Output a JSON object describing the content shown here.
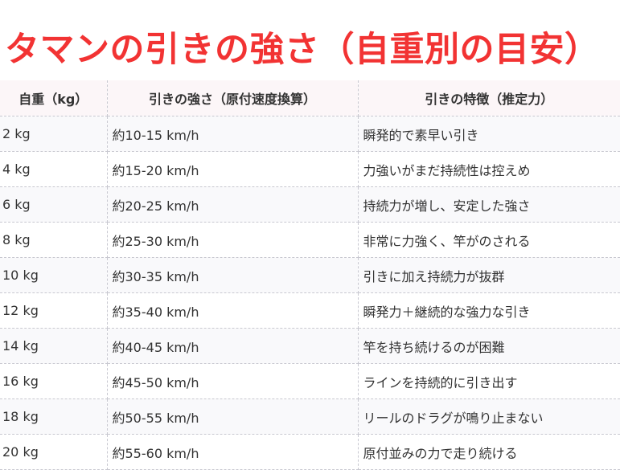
{
  "title": "タマンの引きの強さ（自重別の目安）",
  "table": {
    "headers": [
      "自重（kg）",
      "引きの強さ（原付速度換算）",
      "引きの特徴（推定力）"
    ],
    "rows": [
      [
        "2 kg",
        "約10-15 km/h",
        "瞬発的で素早い引き"
      ],
      [
        "4 kg",
        "約15-20 km/h",
        "力強いがまだ持続性は控えめ"
      ],
      [
        "6 kg",
        "約20-25 km/h",
        "持続力が増し、安定した強さ"
      ],
      [
        "8 kg",
        "約25-30 km/h",
        "非常に力強く、竿がのされる"
      ],
      [
        "10 kg",
        "約30-35 km/h",
        "引きに加え持続力が抜群"
      ],
      [
        "12 kg",
        "約35-40 km/h",
        "瞬発力＋継続的な強力な引き"
      ],
      [
        "14 kg",
        "約40-45 km/h",
        "竿を持ち続けるのが困難"
      ],
      [
        "16 kg",
        "約45-50 km/h",
        "ラインを持続的に引き出す"
      ],
      [
        "18 kg",
        "約50-55 km/h",
        "リールのドラグが鳴り止まない"
      ],
      [
        "20 kg",
        "約55-60 km/h",
        "原付並みの力で走り続ける"
      ]
    ]
  },
  "colors": {
    "title": "#f23333",
    "header_bg": "#fcf6f8"
  }
}
